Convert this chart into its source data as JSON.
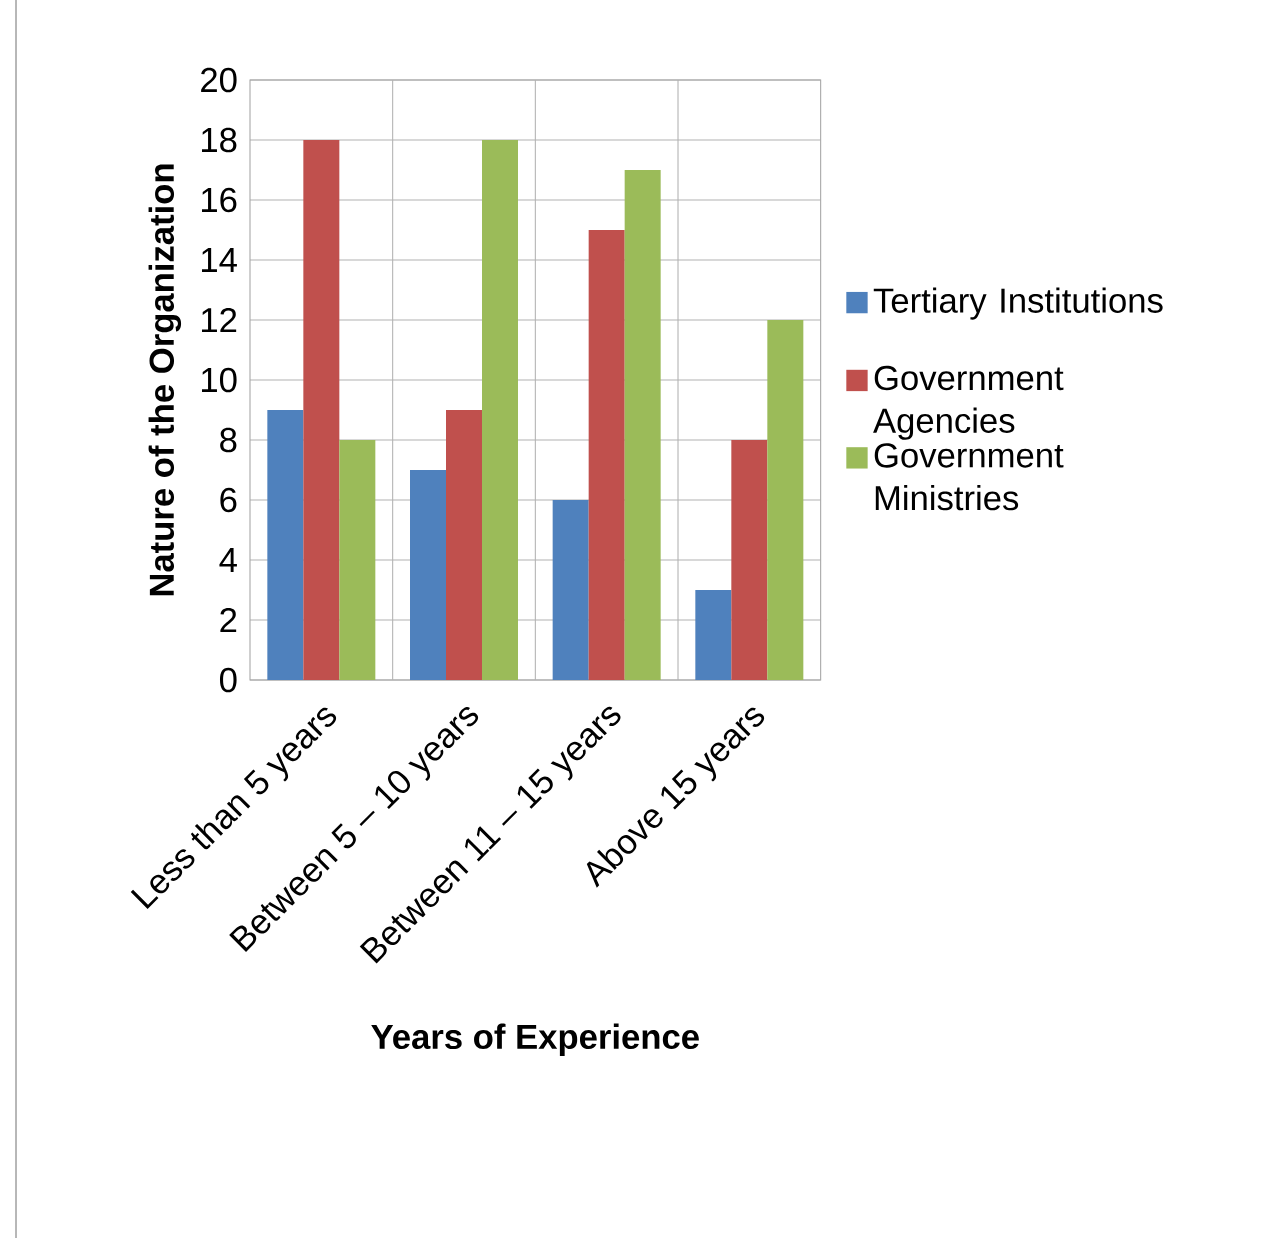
{
  "chart_data": {
    "type": "bar",
    "xlabel": "Years of Experience",
    "ylabel": "Nature of the Organization",
    "categories": [
      "Less than 5 years",
      "Between 5 – 10 years",
      "Between 11 – 15 years",
      "Above 15 years"
    ],
    "series": [
      {
        "name": "Tertiary Institutions",
        "color": "#4f81bd",
        "values": [
          9,
          7,
          6,
          3
        ]
      },
      {
        "name": "Government Agencies",
        "color": "#c0504d",
        "values": [
          18,
          9,
          15,
          8
        ]
      },
      {
        "name": "Government Ministries",
        "color": "#9bbb59",
        "values": [
          8,
          18,
          17,
          12
        ]
      }
    ],
    "ylim": [
      0,
      20
    ],
    "yticks": [
      0,
      2,
      4,
      6,
      8,
      10,
      12,
      14,
      16,
      18,
      20
    ],
    "grid": "y",
    "legend": "right"
  }
}
